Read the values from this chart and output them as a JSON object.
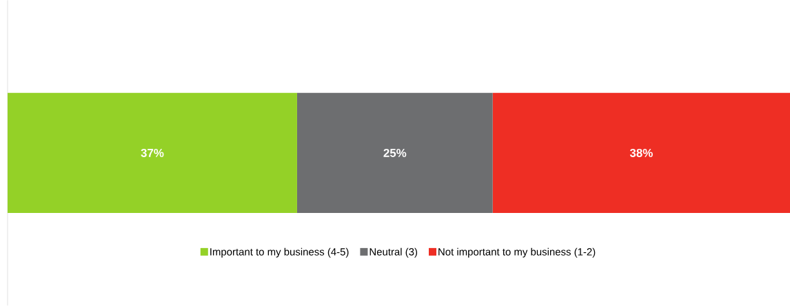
{
  "chart_data": {
    "type": "bar",
    "orientation": "horizontal",
    "stacked": true,
    "categories": [
      null
    ],
    "series": [
      {
        "name": "Important to my business (4-5)",
        "color": "#94d127",
        "values": [
          37
        ],
        "value_labels": [
          "37%"
        ]
      },
      {
        "name": "Neutral (3)",
        "color": "#6d6e70",
        "values": [
          25
        ],
        "value_labels": [
          "25%"
        ]
      },
      {
        "name": "Not important to my business (1-2)",
        "color": "#ee2e24",
        "values": [
          38
        ],
        "value_labels": [
          "38%"
        ]
      }
    ],
    "legend": "bottom"
  }
}
